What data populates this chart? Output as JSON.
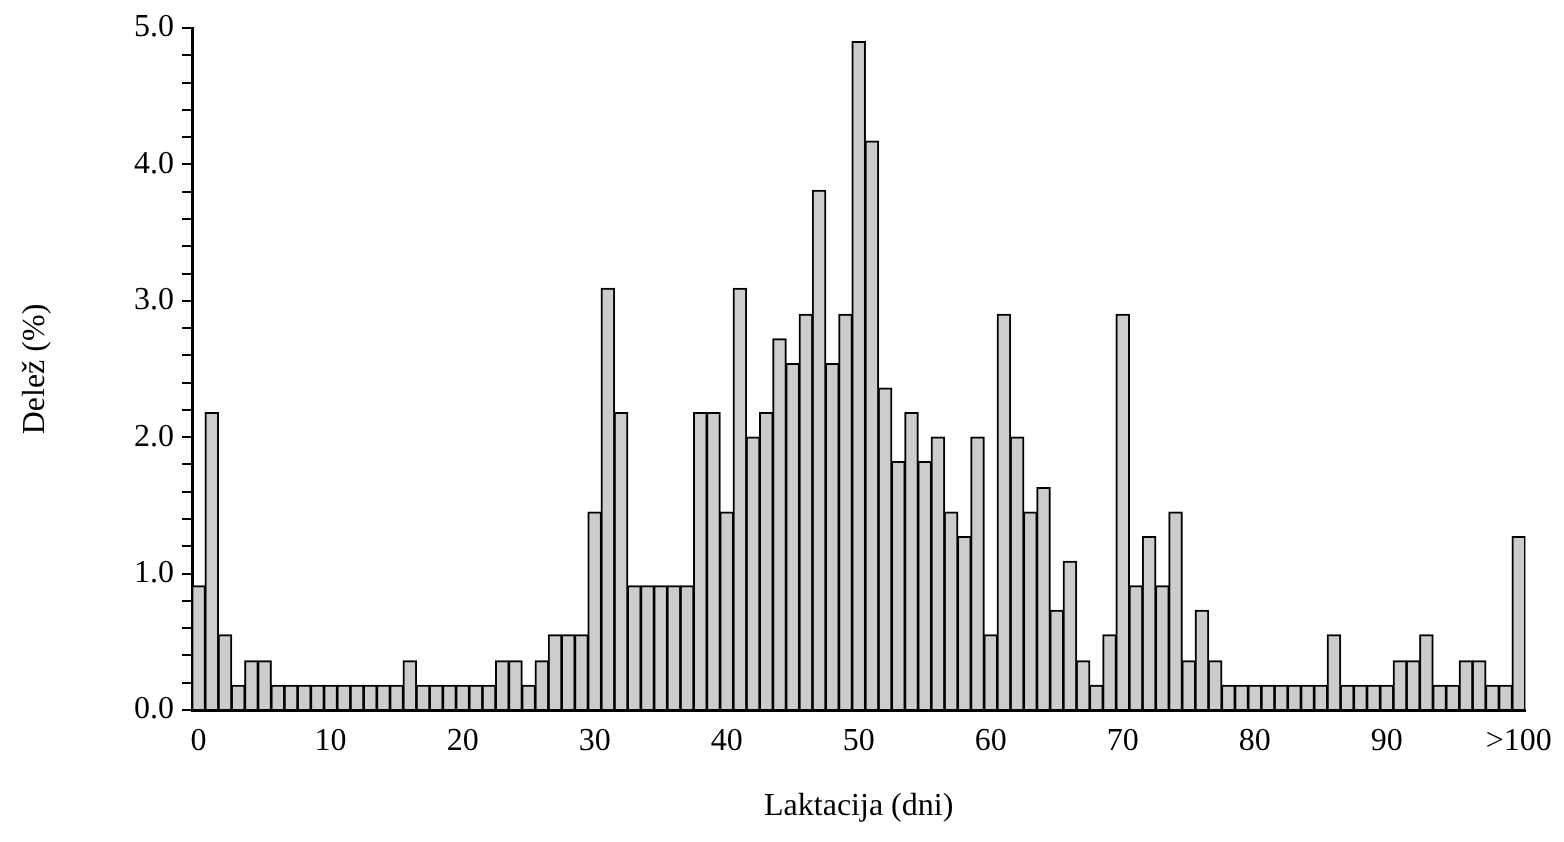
{
  "chart_data": {
    "type": "bar",
    "xlabel": "Laktacija (dni)",
    "ylabel": "Delež (%)",
    "categories": [
      "0",
      null,
      null,
      null,
      null,
      null,
      null,
      null,
      null,
      null,
      "10",
      null,
      null,
      null,
      null,
      null,
      null,
      null,
      null,
      null,
      "20",
      null,
      null,
      null,
      null,
      null,
      null,
      null,
      null,
      null,
      "30",
      null,
      null,
      null,
      null,
      null,
      null,
      null,
      null,
      null,
      "40",
      null,
      null,
      null,
      null,
      null,
      null,
      null,
      null,
      null,
      "50",
      null,
      null,
      null,
      null,
      null,
      null,
      null,
      null,
      null,
      "60",
      null,
      null,
      null,
      null,
      null,
      null,
      null,
      null,
      null,
      "70",
      null,
      null,
      null,
      null,
      null,
      null,
      null,
      null,
      null,
      "80",
      null,
      null,
      null,
      null,
      null,
      null,
      null,
      null,
      null,
      "90",
      null,
      null,
      null,
      null,
      null,
      null,
      null,
      null,
      null,
      ">100"
    ],
    "values": [
      0.91,
      2.18,
      0.55,
      0.18,
      0.36,
      0.36,
      0.18,
      0.18,
      0.18,
      0.18,
      0.18,
      0.18,
      0.18,
      0.18,
      0.18,
      0.18,
      0.36,
      0.18,
      0.18,
      0.18,
      0.18,
      0.18,
      0.18,
      0.36,
      0.36,
      0.18,
      0.36,
      0.55,
      0.55,
      0.55,
      1.45,
      3.09,
      2.18,
      0.91,
      0.91,
      0.91,
      0.91,
      0.91,
      2.18,
      2.18,
      1.45,
      3.09,
      2.0,
      2.18,
      2.72,
      2.54,
      2.9,
      3.81,
      2.54,
      2.9,
      4.9,
      4.17,
      2.36,
      1.82,
      2.18,
      1.82,
      2.0,
      1.45,
      1.27,
      2.0,
      0.55,
      2.9,
      2.0,
      1.45,
      1.63,
      0.73,
      1.09,
      0.36,
      0.18,
      0.55,
      2.9,
      0.91,
      1.27,
      0.91,
      1.45,
      0.36,
      0.73,
      0.36,
      0.18,
      0.18,
      0.18,
      0.18,
      0.18,
      0.18,
      0.18,
      0.18,
      0.55,
      0.18,
      0.18,
      0.18,
      0.18,
      0.36,
      0.36,
      0.55,
      0.18,
      0.18,
      0.36,
      0.36,
      0.18,
      0.18,
      1.27
    ],
    "color": "#cccccc",
    "ylim": [
      0,
      5
    ],
    "yticks": [
      {
        "value": 0,
        "label": "0.0"
      },
      {
        "value": 0.2,
        "label": null
      },
      {
        "value": 0.4,
        "label": null
      },
      {
        "value": 0.6,
        "label": null
      },
      {
        "value": 0.8,
        "label": null
      },
      {
        "value": 1,
        "label": "1.0"
      },
      {
        "value": 1.2,
        "label": null
      },
      {
        "value": 1.4,
        "label": null
      },
      {
        "value": 1.6,
        "label": null
      },
      {
        "value": 1.8,
        "label": null
      },
      {
        "value": 2,
        "label": "2.0"
      },
      {
        "value": 2.2,
        "label": null
      },
      {
        "value": 2.4,
        "label": null
      },
      {
        "value": 2.6,
        "label": null
      },
      {
        "value": 2.8,
        "label": null
      },
      {
        "value": 3,
        "label": "3.0"
      },
      {
        "value": 3.2,
        "label": null
      },
      {
        "value": 3.4,
        "label": null
      },
      {
        "value": 3.6,
        "label": null
      },
      {
        "value": 3.8,
        "label": null
      },
      {
        "value": 4,
        "label": "4.0"
      },
      {
        "value": 4.2,
        "label": null
      },
      {
        "value": 4.4,
        "label": null
      },
      {
        "value": 4.6,
        "label": null
      },
      {
        "value": 4.8,
        "label": null
      },
      {
        "value": 5,
        "label": "5.0"
      }
    ],
    "grid": false,
    "legend": false
  }
}
